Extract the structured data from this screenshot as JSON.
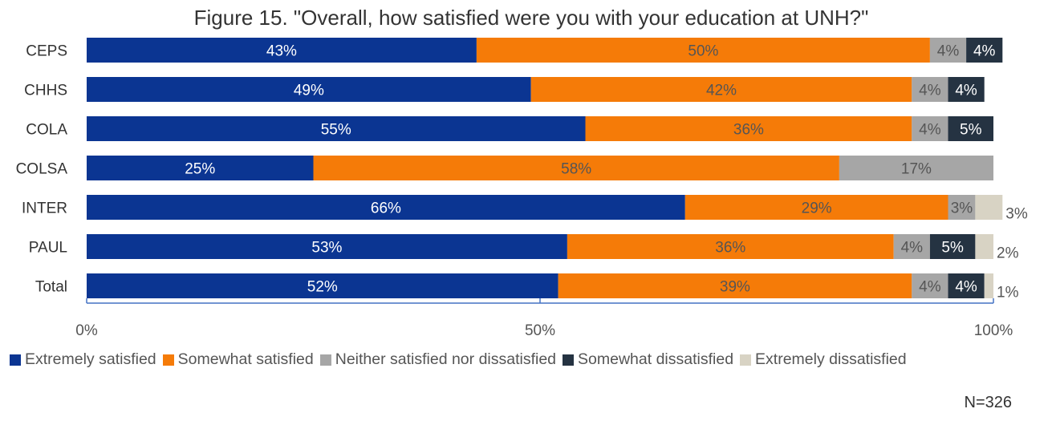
{
  "chart_data": {
    "type": "bar",
    "orientation": "horizontal-stacked",
    "title": "Figure 15. \"Overall, how satisfied were you with your education at UNH?\"",
    "categories": [
      "CEPS",
      "CHHS",
      "COLA",
      "COLSA",
      "INTER",
      "PAUL",
      "Total"
    ],
    "series": [
      {
        "name": "Extremely satisfied",
        "color": "#0b3592",
        "label_color": "#ffffff",
        "values": [
          43,
          49,
          55,
          25,
          66,
          53,
          52
        ],
        "labels": [
          "43%",
          "49%",
          "55%",
          "25%",
          "66%",
          "53%",
          "52%"
        ]
      },
      {
        "name": "Somewhat satisfied",
        "color": "#f57b08",
        "label_color": "#555555",
        "values": [
          50,
          42,
          36,
          58,
          29,
          36,
          39
        ],
        "labels": [
          "50%",
          "42%",
          "36%",
          "58%",
          "29%",
          "36%",
          "39%"
        ]
      },
      {
        "name": "Neither satisfied nor dissatisfied",
        "color": "#a6a6a6",
        "label_color": "#555555",
        "values": [
          4,
          4,
          4,
          17,
          3,
          4,
          4
        ],
        "labels": [
          "4%",
          "4%",
          "4%",
          "17%",
          "3%",
          "4%",
          "4%"
        ]
      },
      {
        "name": "Somewhat dissatisfied",
        "color": "#253342",
        "label_color": "#ffffff",
        "values": [
          4,
          4,
          5,
          0,
          0,
          5,
          4
        ],
        "labels": [
          "4%",
          "4%",
          "5%",
          "",
          "",
          "5%",
          "4%"
        ]
      },
      {
        "name": "Extremely dissatisfied",
        "color": "#d8d3c4",
        "label_color": "#555555",
        "values": [
          0,
          0,
          0,
          0,
          3,
          2,
          1
        ],
        "labels": [
          "",
          "",
          "",
          "",
          "3%",
          "2%",
          "1%"
        ]
      }
    ],
    "xlim": [
      0,
      100
    ],
    "xticks": [
      "0%",
      "50%",
      "100%"
    ],
    "legend_position": "bottom",
    "grid": false
  },
  "note": "N=326"
}
